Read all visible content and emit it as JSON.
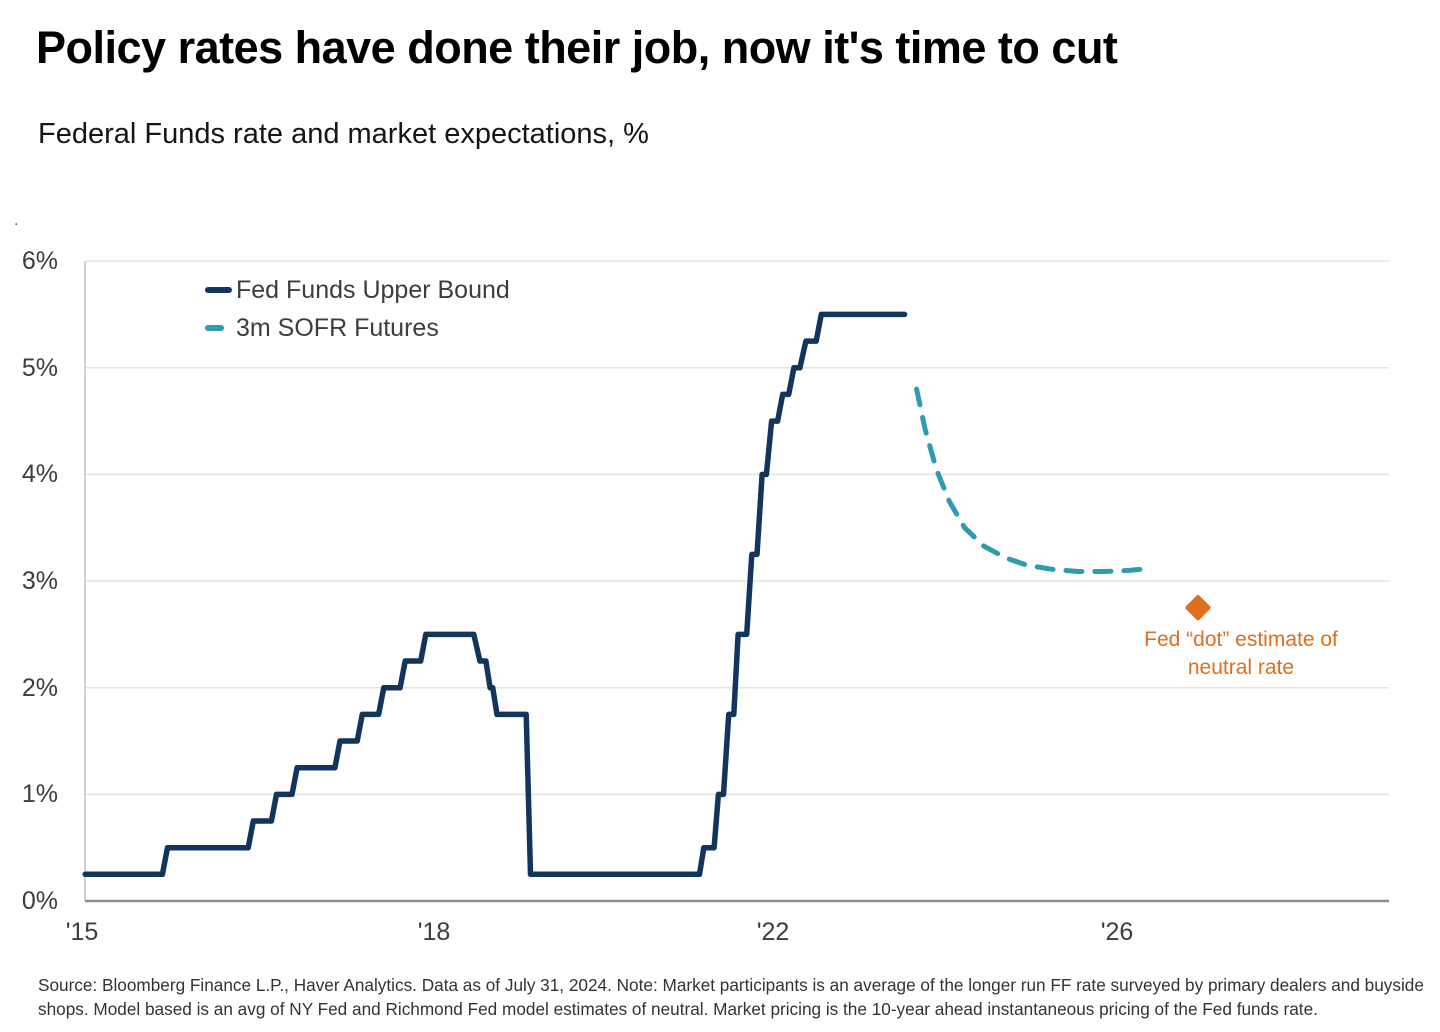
{
  "page": {
    "title": "Policy rates have done their job, now it's time to cut",
    "subtitle": "Federal Funds rate and market expectations, %",
    "stray_mark": ".",
    "footnote_line1": "Source: Bloomberg Finance L.P., Haver Analytics. Data as of July 31, 2024. Note: Market participants is an average of the longer run FF rate surveyed by primary dealers and buyside",
    "footnote_line2": "shops. Model based is an avg of NY Fed and Richmond Fed model estimates of neutral. Market pricing is the 10-year ahead instantaneous pricing of the Fed funds rate."
  },
  "legend": {
    "items": [
      {
        "label": "Fed Funds Upper Bound",
        "color": "#12355E",
        "style": "solid"
      },
      {
        "label": "3m SOFR Futures",
        "color": "#2F9BAE",
        "style": "dashed"
      }
    ]
  },
  "annotation": {
    "line1": "Fed “dot” estimate of",
    "line2": "neutral rate",
    "color": "#DD6F1E"
  },
  "colors": {
    "navy": "#12355E",
    "teal": "#2F9BAE",
    "orange": "#DD6F1E",
    "gridline": "#E4E4E4",
    "x_axis": "#8F8F8F",
    "y_axis": "#C4C4C4",
    "tick_text": "#3D3D3D"
  },
  "chart_data": {
    "type": "line",
    "title": "Federal Funds rate and market expectations, %",
    "xlabel": "",
    "ylabel": "%",
    "ylim": [
      0,
      6
    ],
    "grid": "horizontal",
    "legend_position": "top-left-inside",
    "x_unit": "decimal year",
    "x_ticks": [
      "'15",
      "'18",
      "'22",
      "'26"
    ],
    "y_ticks": [
      "0%",
      "1%",
      "2%",
      "3%",
      "4%",
      "5%",
      "6%"
    ],
    "series": [
      {
        "name": "Fed Funds Upper Bound",
        "color": "#12355E",
        "style": "solid",
        "points": [
          [
            2015.03,
            0.25
          ],
          [
            2015.93,
            0.25
          ],
          [
            2015.99,
            0.5
          ],
          [
            2016.93,
            0.5
          ],
          [
            2016.99,
            0.75
          ],
          [
            2017.2,
            0.75
          ],
          [
            2017.26,
            1.0
          ],
          [
            2017.44,
            1.0
          ],
          [
            2017.5,
            1.25
          ],
          [
            2017.94,
            1.25
          ],
          [
            2018.0,
            1.5
          ],
          [
            2018.2,
            1.5
          ],
          [
            2018.26,
            1.75
          ],
          [
            2018.45,
            1.75
          ],
          [
            2018.51,
            2.0
          ],
          [
            2018.7,
            2.0
          ],
          [
            2018.76,
            2.25
          ],
          [
            2018.94,
            2.25
          ],
          [
            2019.0,
            2.5
          ],
          [
            2019.56,
            2.5
          ],
          [
            2019.63,
            2.25
          ],
          [
            2019.7,
            2.25
          ],
          [
            2019.75,
            2.0
          ],
          [
            2019.78,
            2.0
          ],
          [
            2019.83,
            1.75
          ],
          [
            2020.17,
            1.75
          ],
          [
            2020.22,
            0.25
          ],
          [
            2022.19,
            0.25
          ],
          [
            2022.24,
            0.5
          ],
          [
            2022.36,
            0.5
          ],
          [
            2022.41,
            1.0
          ],
          [
            2022.47,
            1.0
          ],
          [
            2022.53,
            1.75
          ],
          [
            2022.59,
            1.75
          ],
          [
            2022.64,
            2.5
          ],
          [
            2022.74,
            2.5
          ],
          [
            2022.8,
            3.25
          ],
          [
            2022.86,
            3.25
          ],
          [
            2022.92,
            4.0
          ],
          [
            2022.97,
            4.0
          ],
          [
            2023.03,
            4.5
          ],
          [
            2023.1,
            4.5
          ],
          [
            2023.16,
            4.75
          ],
          [
            2023.23,
            4.75
          ],
          [
            2023.29,
            5.0
          ],
          [
            2023.36,
            5.0
          ],
          [
            2023.43,
            5.25
          ],
          [
            2023.55,
            5.25
          ],
          [
            2023.61,
            5.5
          ],
          [
            2024.58,
            5.5
          ]
        ]
      },
      {
        "name": "3m SOFR Futures",
        "color": "#2F9BAE",
        "style": "dashed",
        "points": [
          [
            2024.72,
            4.8
          ],
          [
            2024.82,
            4.42
          ],
          [
            2024.95,
            4.05
          ],
          [
            2025.1,
            3.75
          ],
          [
            2025.28,
            3.5
          ],
          [
            2025.5,
            3.33
          ],
          [
            2025.75,
            3.22
          ],
          [
            2026.0,
            3.15
          ],
          [
            2026.3,
            3.11
          ],
          [
            2026.6,
            3.09
          ],
          [
            2026.9,
            3.09
          ],
          [
            2027.2,
            3.1
          ],
          [
            2027.45,
            3.12
          ]
        ]
      }
    ],
    "point_marker": {
      "name": "Fed dot estimate of neutral rate",
      "shape": "diamond",
      "color": "#DD6F1E",
      "x": 2028.0,
      "y": 2.75
    }
  }
}
